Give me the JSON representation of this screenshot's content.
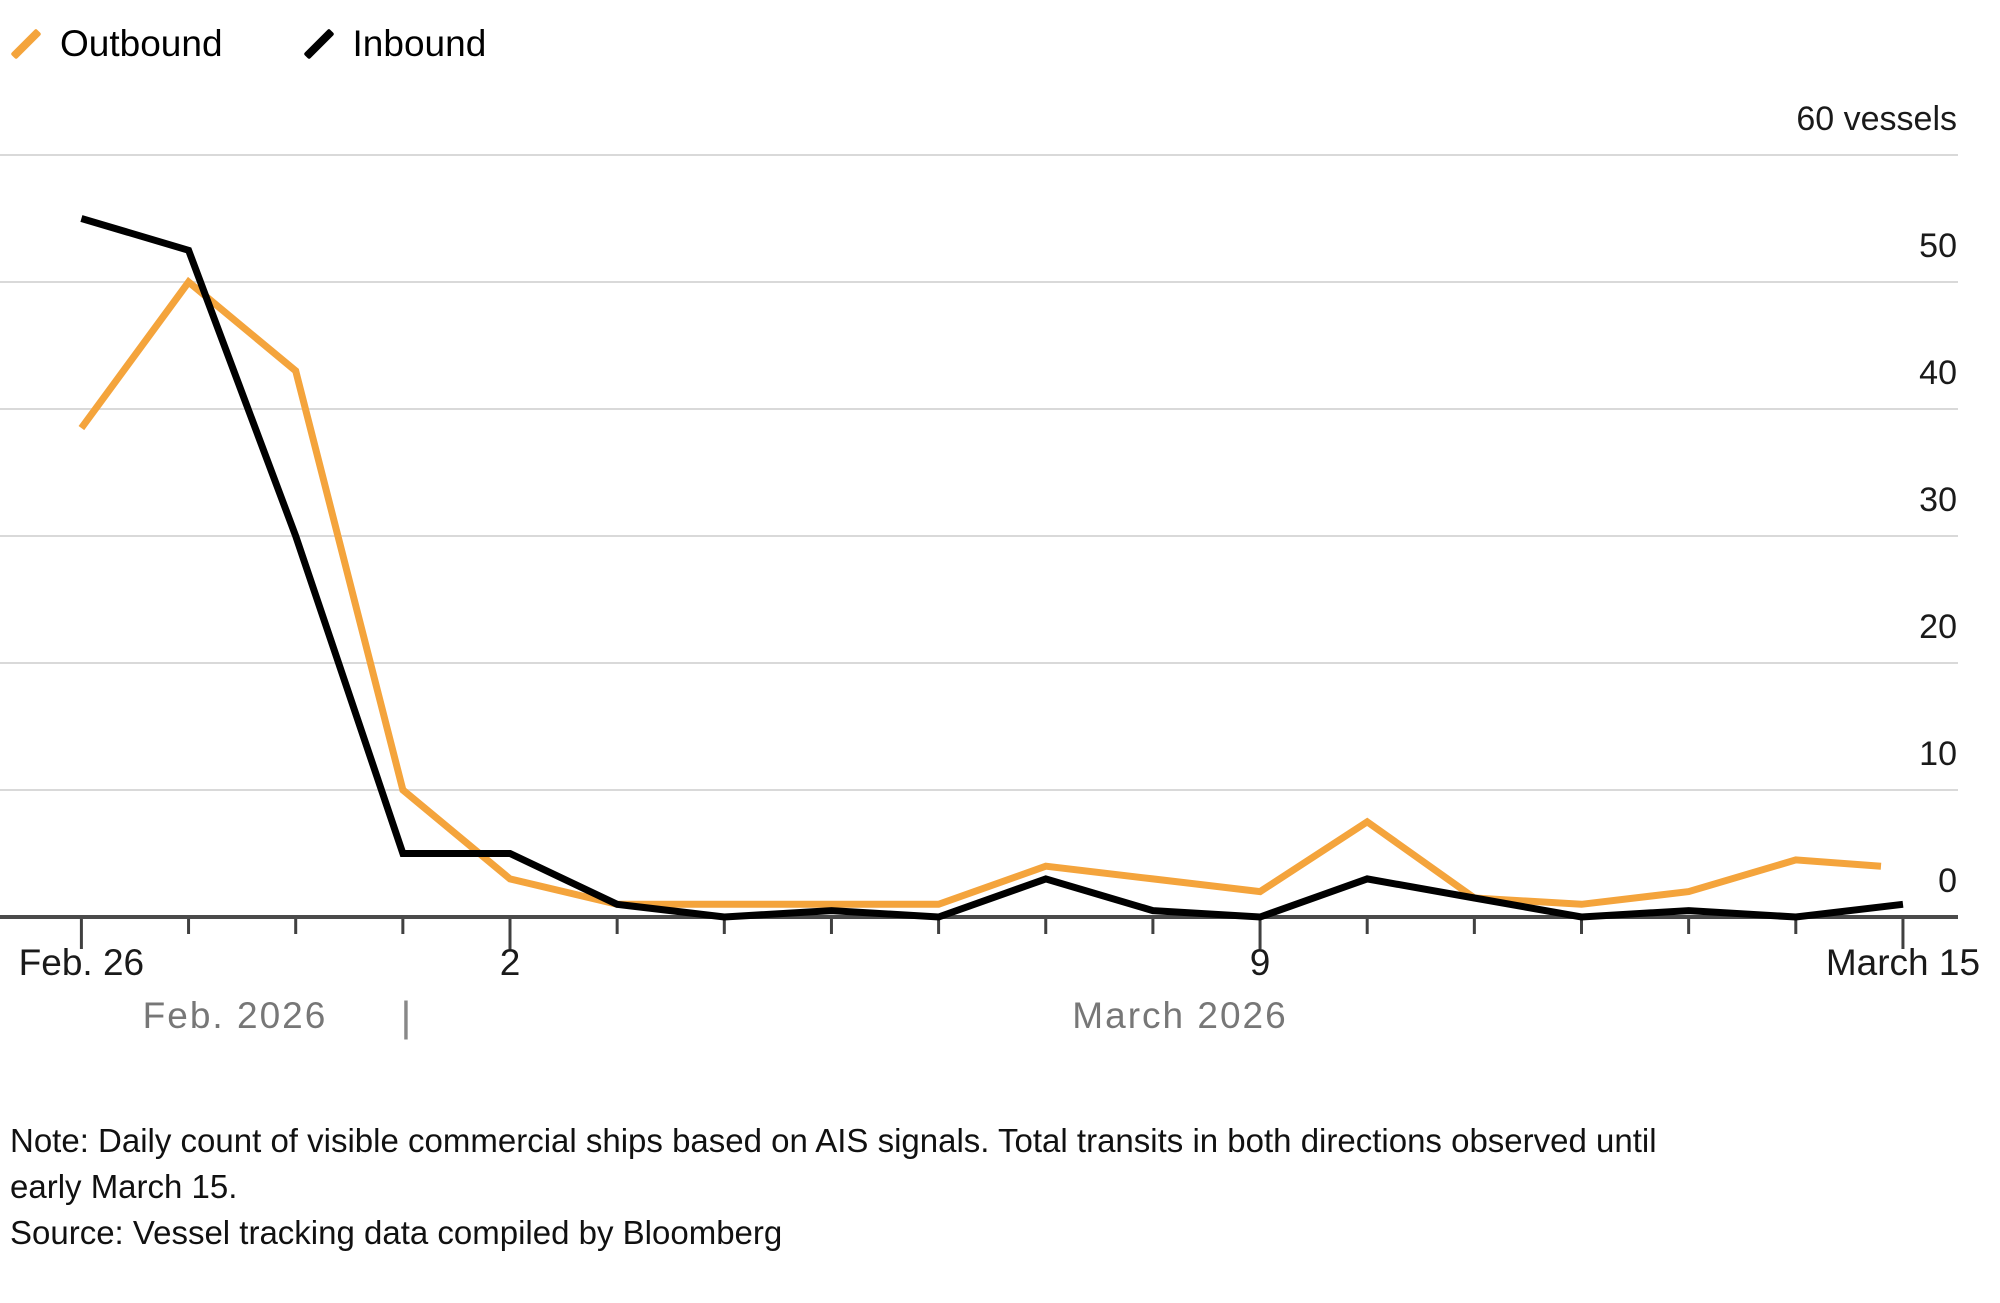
{
  "legend": {
    "position": "top-left"
  },
  "chart_data": {
    "type": "line",
    "title": "",
    "unit": "vessels",
    "n_points": 18,
    "grid": "horizontal",
    "legend_position": "top-left",
    "ylim": [
      0,
      60
    ],
    "y_ticks": [
      {
        "v": 60,
        "label": "60 vessels"
      },
      {
        "v": 50,
        "label": "50"
      },
      {
        "v": 40,
        "label": "40"
      },
      {
        "v": 30,
        "label": "30"
      },
      {
        "v": 20,
        "label": "20"
      },
      {
        "v": 10,
        "label": "10"
      },
      {
        "v": 0,
        "label": "0"
      }
    ],
    "x_labeled_ticks": [
      {
        "i": 0,
        "label": "Feb. 26"
      },
      {
        "i": 4,
        "label": "2"
      },
      {
        "i": 11,
        "label": "9"
      },
      {
        "i": 17,
        "label": "March 15"
      }
    ],
    "months": {
      "left": "Feb. 2026",
      "separator": "|",
      "right": "March 2026"
    },
    "series": [
      {
        "name": "Outbound",
        "color": "#F4A43C",
        "values": [
          38.5,
          50,
          43,
          10,
          3,
          1,
          1,
          1,
          1,
          4,
          3,
          2,
          7.5,
          1.5,
          1,
          2,
          4.5,
          4
        ]
      },
      {
        "name": "Inbound",
        "color": "#000000",
        "values": [
          55,
          52.5,
          30,
          5,
          5,
          1,
          0,
          0.5,
          0,
          3,
          0.5,
          0,
          3,
          1.5,
          0,
          0.5,
          0,
          1
        ]
      }
    ]
  },
  "colors": {
    "outbound": "#F4A43C",
    "inbound": "#000000",
    "gridline": "#d9d9d9",
    "axis": "#4a4a4a",
    "tick": "#404040",
    "month_text": "#777777"
  },
  "note": {
    "text": "Note: Daily count of visible commercial ships based on AIS signals. Total transits in both directions observed until early March 15.",
    "source": "Source: Vessel tracking data compiled by Bloomberg"
  }
}
